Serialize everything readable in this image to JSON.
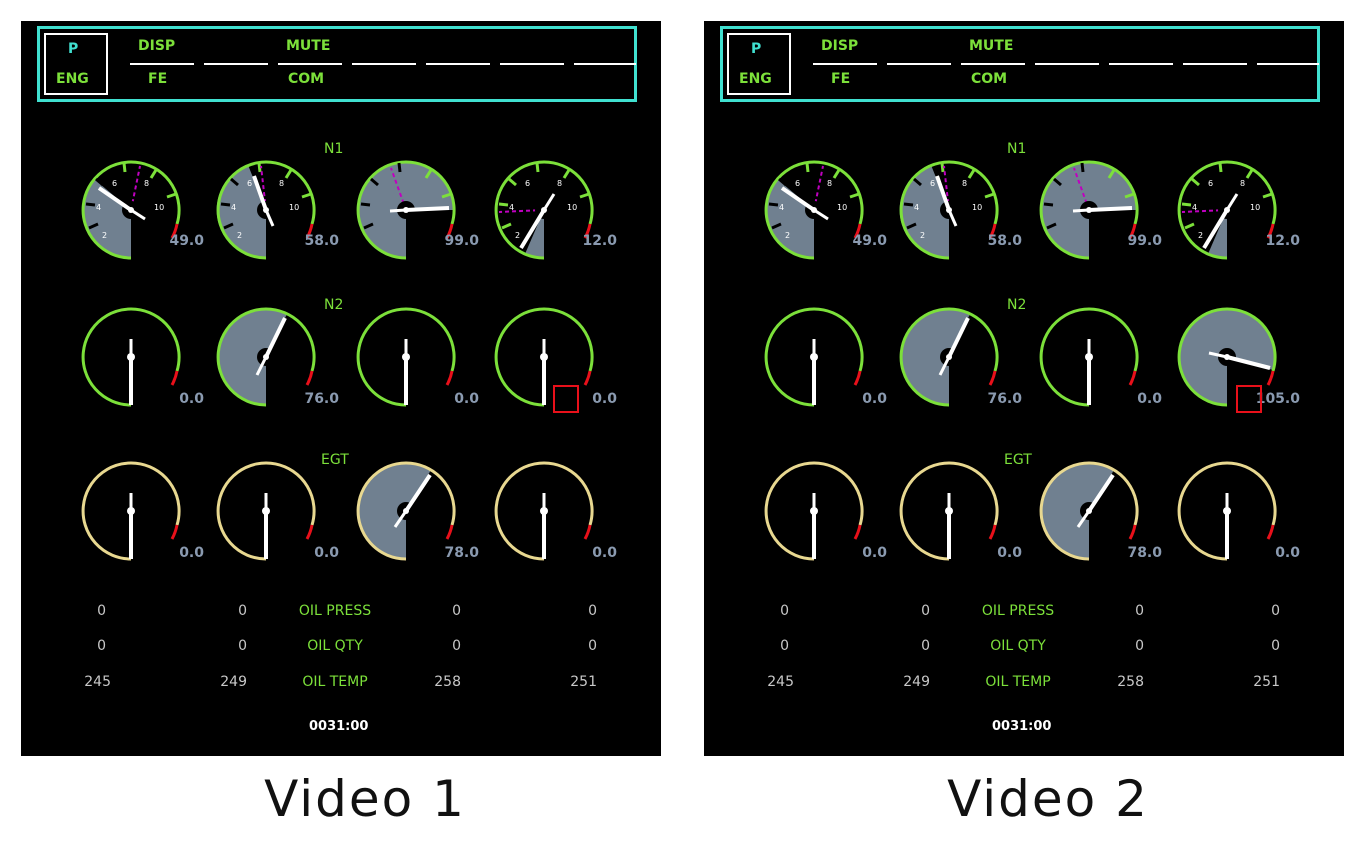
{
  "videos": [
    {
      "caption": "Video 1",
      "menu": {
        "page_top": "P",
        "page_bottom": "ENG",
        "btn1_top": "DISP",
        "btn1_bottom": "FE",
        "btn2_top": "MUTE",
        "btn2_bottom": "COM"
      },
      "sections": {
        "n1": "N1",
        "n2": "N2",
        "egt": "EGT"
      },
      "n1_readouts": [
        "49.0",
        "58.0",
        "99.0",
        "12.0"
      ],
      "n2_readouts": [
        "0.0",
        "76.0",
        "0.0",
        "0.0"
      ],
      "egt_readouts": [
        "0.0",
        "0.0",
        "78.0",
        "0.0"
      ],
      "oil": {
        "press_label": "OIL PRESS",
        "qty_label": "OIL QTY",
        "temp_label": "OIL TEMP",
        "press": [
          "0",
          "0",
          "0",
          "0"
        ],
        "qty": [
          "0",
          "0",
          "0",
          "0"
        ],
        "temp": [
          "245",
          "249",
          "258",
          "251"
        ]
      },
      "timer": "0031:00",
      "highlight": "n2-gauge-4-readout"
    },
    {
      "caption": "Video 2",
      "menu": {
        "page_top": "P",
        "page_bottom": "ENG",
        "btn1_top": "DISP",
        "btn1_bottom": "FE",
        "btn2_top": "MUTE",
        "btn2_bottom": "COM"
      },
      "sections": {
        "n1": "N1",
        "n2": "N2",
        "egt": "EGT"
      },
      "n1_readouts": [
        "49.0",
        "58.0",
        "99.0",
        "12.0"
      ],
      "n2_readouts": [
        "0.0",
        "76.0",
        "0.0",
        "105.0"
      ],
      "egt_readouts": [
        "0.0",
        "0.0",
        "78.0",
        "0.0"
      ],
      "oil": {
        "press_label": "OIL PRESS",
        "qty_label": "OIL QTY",
        "temp_label": "OIL TEMP",
        "press": [
          "0",
          "0",
          "0",
          "0"
        ],
        "qty": [
          "0",
          "0",
          "0",
          "0"
        ],
        "temp": [
          "245",
          "249",
          "258",
          "251"
        ]
      },
      "timer": "0031:00",
      "highlight": "n2-gauge-4-readout"
    }
  ],
  "colors": {
    "green": "#7ce03a",
    "cyan": "#40e0d0",
    "egt_arc": "#e8d890",
    "redline": "#e8101a",
    "fill": "#708090",
    "target": "#c000c0"
  }
}
